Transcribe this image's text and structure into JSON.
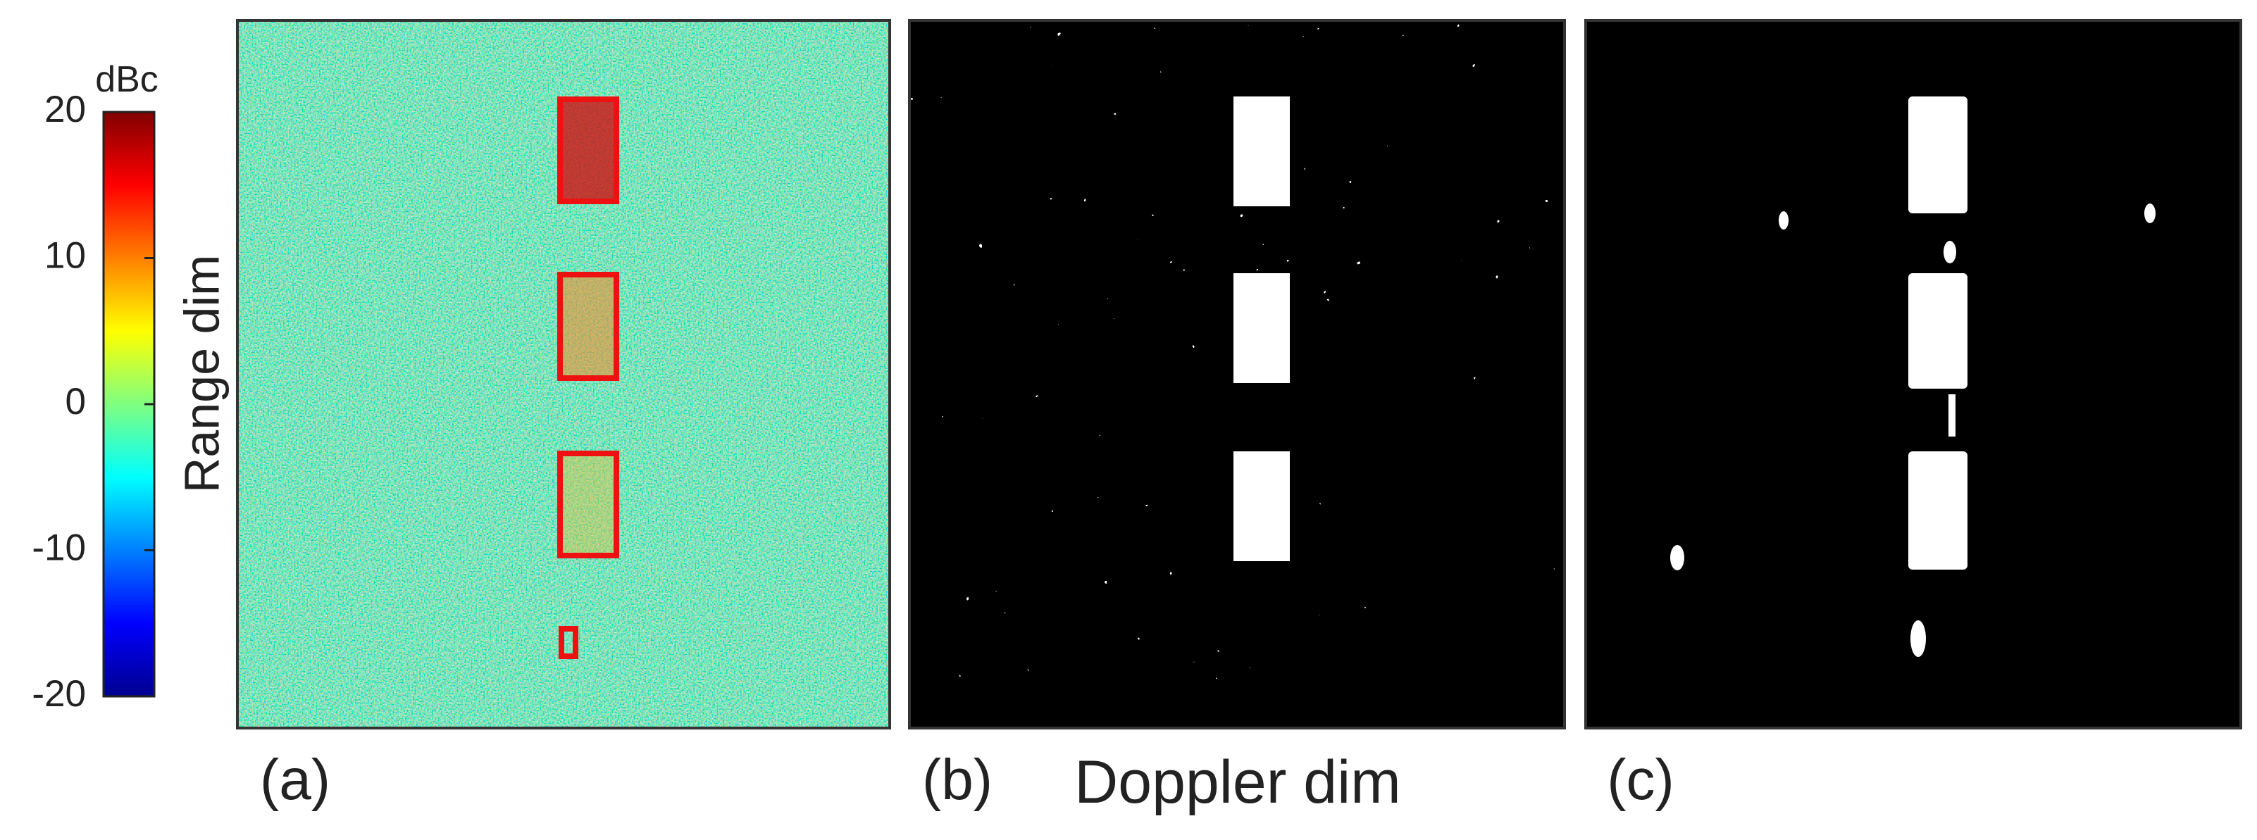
{
  "colorbar": {
    "label": "dBc",
    "ylim": [
      -20,
      20
    ],
    "yticks": [
      -20,
      -10,
      0,
      10,
      20
    ]
  },
  "y_label": "Range dim",
  "x_label": "Doppler dim",
  "panels": [
    {
      "label": "(a)"
    },
    {
      "label": "(b)"
    },
    {
      "label": "(c)"
    }
  ]
}
